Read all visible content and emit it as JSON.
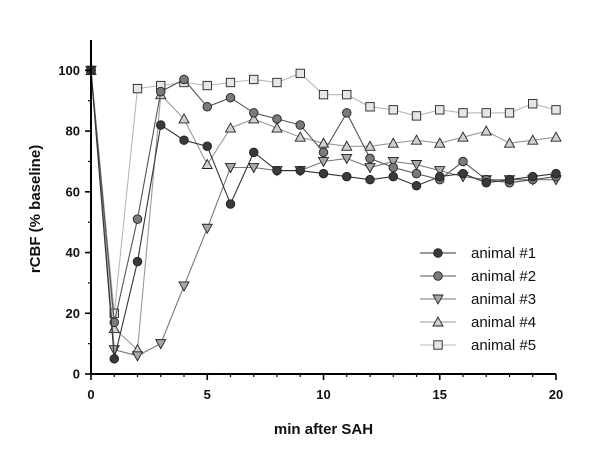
{
  "chart_data": {
    "type": "line",
    "title": "",
    "xlabel": "min after SAH",
    "ylabel": "rCBF  (% baseline)",
    "xlim": [
      0,
      20
    ],
    "ylim": [
      0,
      110
    ],
    "xticks": [
      0,
      5,
      10,
      15,
      20
    ],
    "yticks": [
      0,
      20,
      40,
      60,
      80,
      100
    ],
    "grid": false,
    "legend_position": "right-center",
    "series": [
      {
        "name": "animal #1",
        "marker": "circle",
        "fill": "#3a3a3a",
        "line_color": "#333333",
        "x": [
          0,
          1,
          2,
          3,
          4,
          5,
          6,
          7,
          8,
          9,
          10,
          11,
          12,
          13,
          14,
          15,
          16,
          17,
          18,
          19,
          20
        ],
        "y": [
          100,
          5,
          37,
          82,
          77,
          75,
          56,
          73,
          67,
          67,
          66,
          65,
          64,
          65,
          62,
          65,
          66,
          63,
          64,
          65,
          66
        ]
      },
      {
        "name": "animal #2",
        "marker": "circle",
        "fill": "#7a7a7a",
        "line_color": "#555555",
        "x": [
          0,
          1,
          2,
          3,
          4,
          5,
          6,
          7,
          8,
          9,
          10,
          11,
          12,
          13,
          14,
          15,
          16,
          17,
          18,
          19,
          20
        ],
        "y": [
          100,
          17,
          51,
          93,
          97,
          88,
          91,
          86,
          84,
          82,
          73,
          86,
          71,
          68,
          66,
          64,
          70,
          64,
          63,
          64,
          65
        ]
      },
      {
        "name": "animal #3",
        "marker": "triangle-down",
        "fill": "#a8a8a8",
        "line_color": "#777777",
        "x": [
          0,
          1,
          2,
          3,
          4,
          5,
          6,
          7,
          8,
          9,
          10,
          11,
          12,
          13,
          14,
          15,
          16,
          17,
          18,
          19,
          20
        ],
        "y": [
          100,
          8,
          6,
          10,
          29,
          48,
          68,
          68,
          67,
          67,
          70,
          71,
          68,
          70,
          69,
          67,
          65,
          64,
          64,
          64,
          64
        ]
      },
      {
        "name": "animal #4",
        "marker": "triangle-up",
        "fill": "#d0d0d0",
        "line_color": "#999999",
        "x": [
          0,
          1,
          2,
          3,
          4,
          5,
          6,
          7,
          8,
          9,
          10,
          11,
          12,
          13,
          14,
          15,
          16,
          17,
          18,
          19,
          20
        ],
        "y": [
          100,
          15,
          8,
          92,
          84,
          69,
          81,
          84,
          81,
          78,
          76,
          75,
          75,
          76,
          77,
          76,
          78,
          80,
          76,
          77,
          78
        ]
      },
      {
        "name": "animal #5",
        "marker": "square",
        "fill": "#e6e6e6",
        "line_color": "#b8b8b8",
        "x": [
          0,
          1,
          2,
          3,
          4,
          5,
          6,
          7,
          8,
          9,
          10,
          11,
          12,
          13,
          14,
          15,
          16,
          17,
          18,
          19,
          20
        ],
        "y": [
          100,
          20,
          94,
          95,
          96,
          95,
          96,
          97,
          96,
          99,
          92,
          92,
          88,
          87,
          85,
          87,
          86,
          86,
          86,
          89,
          87
        ]
      }
    ]
  }
}
